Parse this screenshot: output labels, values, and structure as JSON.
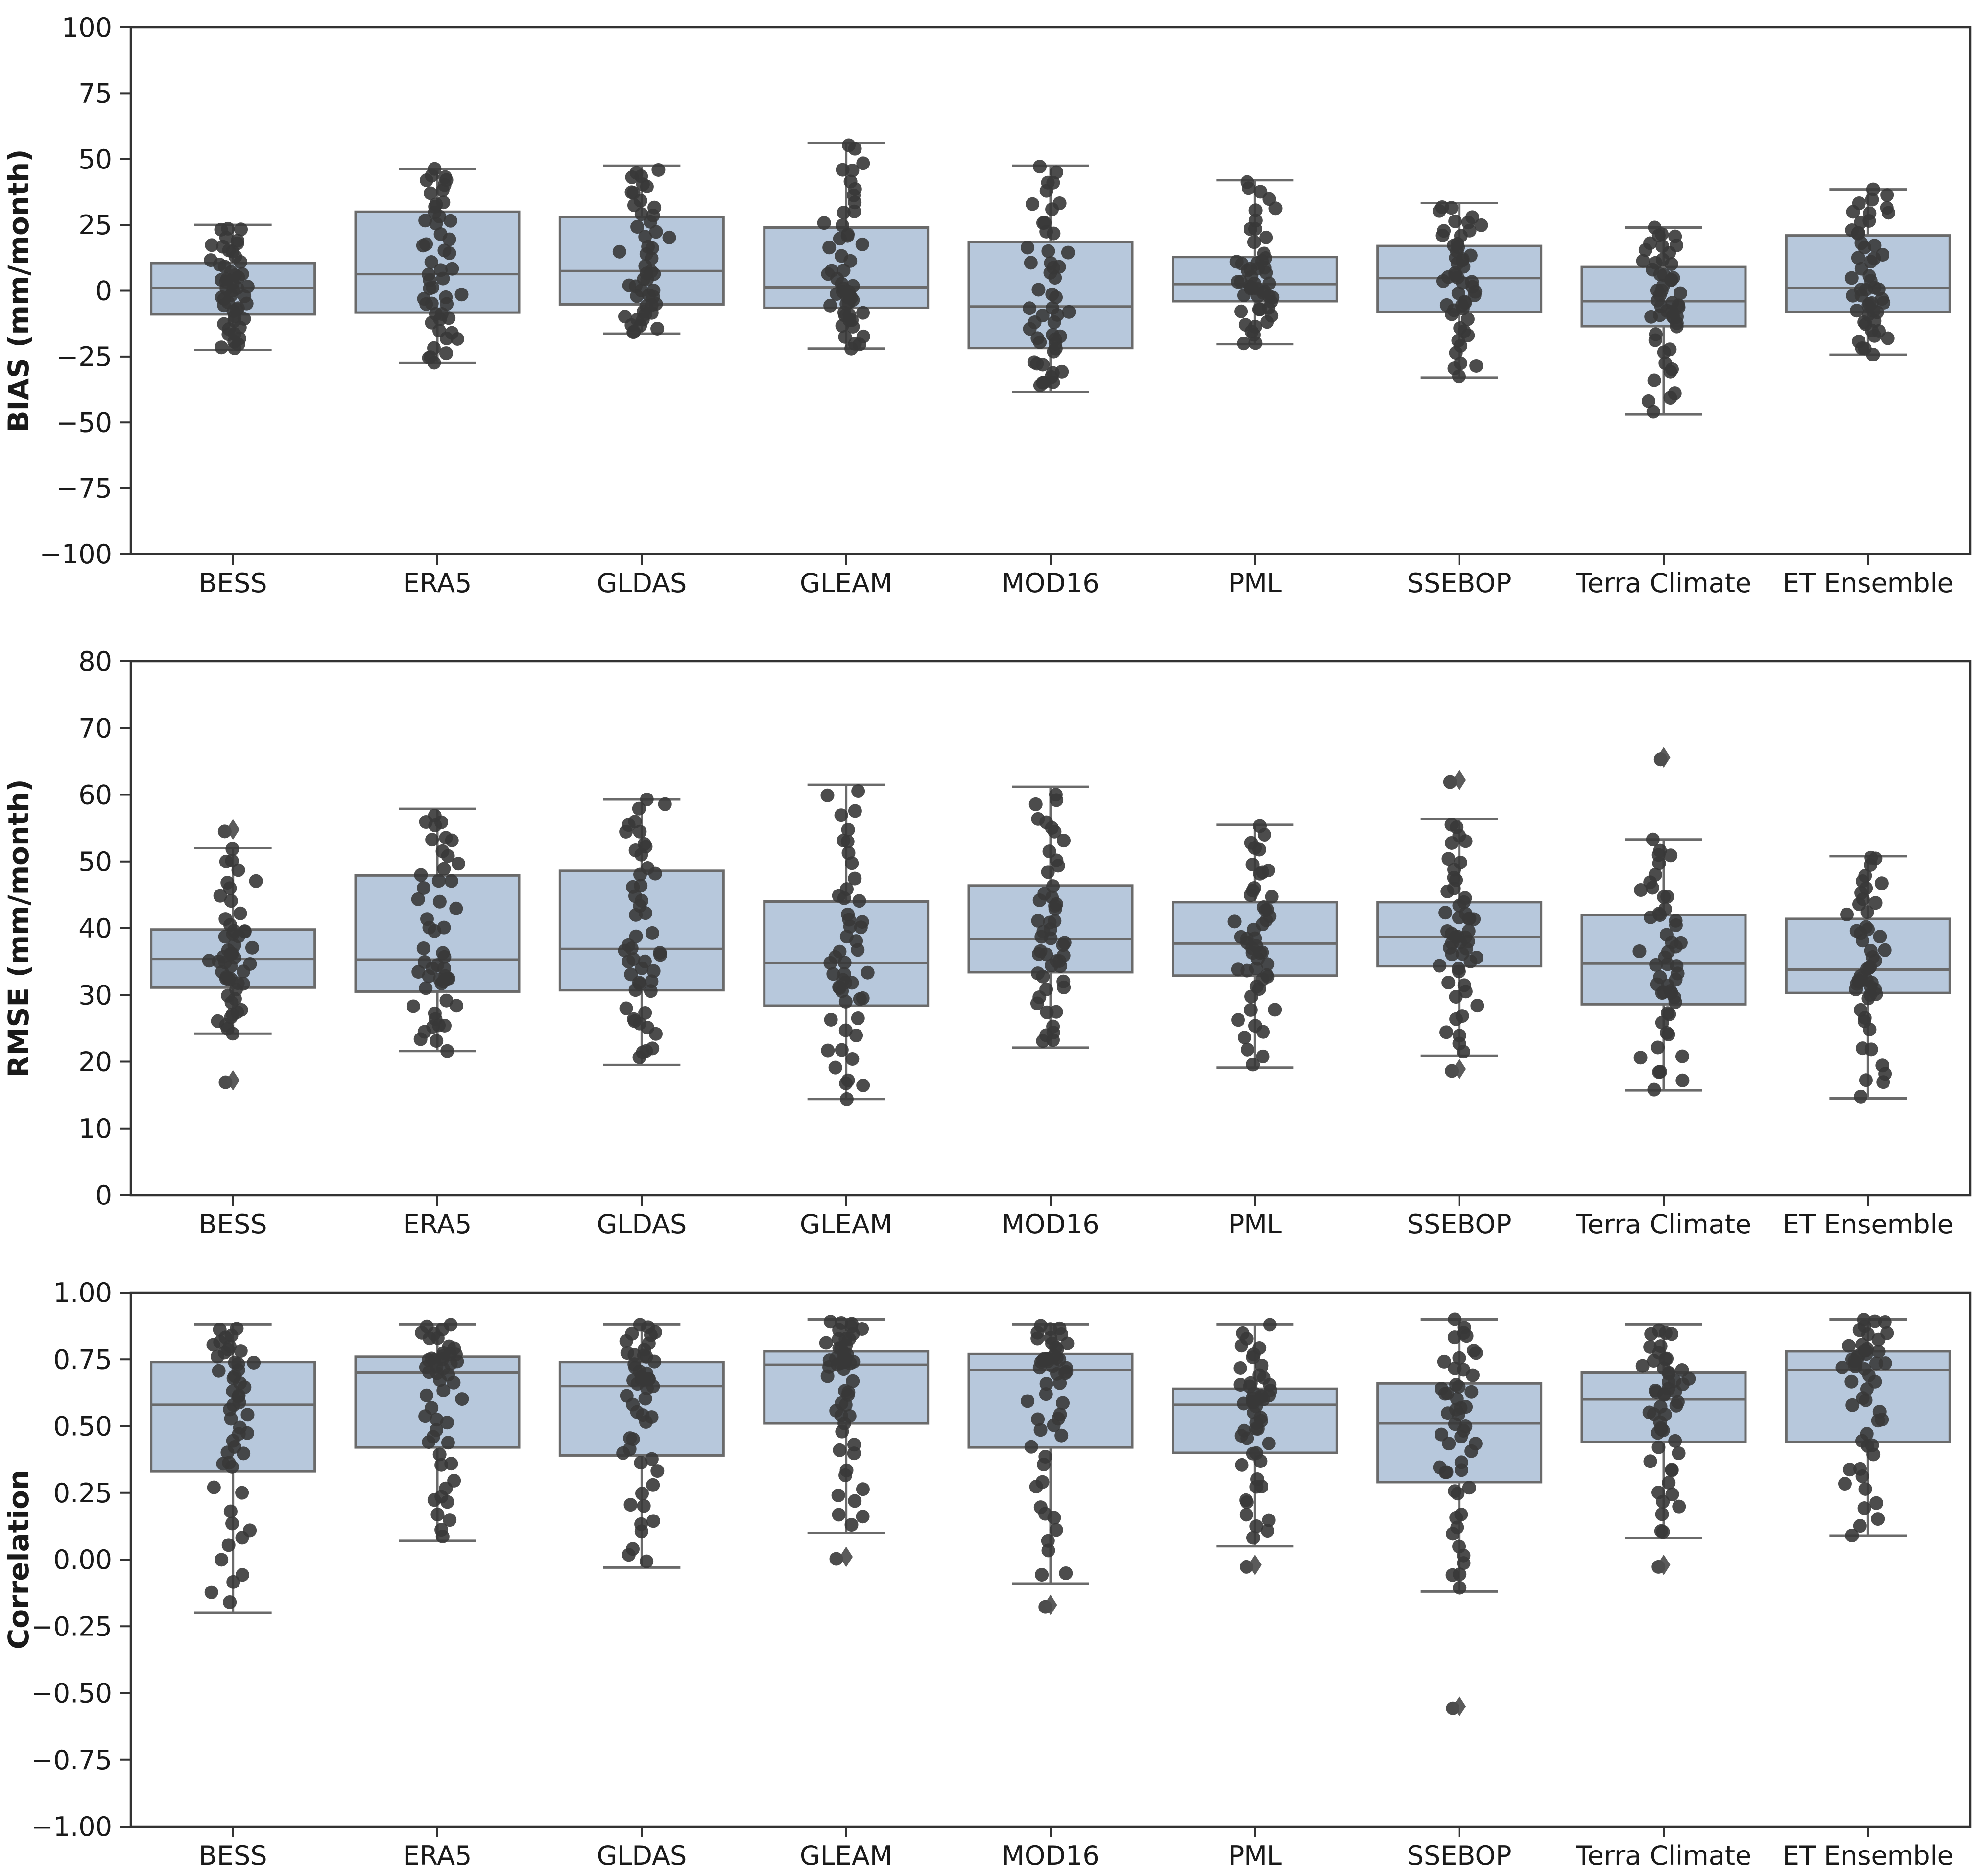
{
  "figure": {
    "background": "#ffffff",
    "box_fill": "#b7c8dc",
    "box_stroke": "#6a6a6a",
    "whisker_color": "#6a6a6a",
    "point_color": "#383838",
    "flier_color": "#4d4d4d",
    "axis_color": "#333333",
    "text_color": "#1a1a1a",
    "points_per_group": 50
  },
  "chart_data": [
    {
      "type": "box",
      "id": "bias",
      "ylabel": "BIAS (mm/month)",
      "xlabel": "",
      "ylim": [
        -100,
        100
      ],
      "grid": false,
      "yticks": [
        {
          "v": 100,
          "label": "100"
        },
        {
          "v": 75,
          "label": "75"
        },
        {
          "v": 50,
          "label": "50"
        },
        {
          "v": 25,
          "label": "25"
        },
        {
          "v": 0,
          "label": "0"
        },
        {
          "v": -25,
          "label": "−25"
        },
        {
          "v": -50,
          "label": "−50"
        },
        {
          "v": -75,
          "label": "−75"
        },
        {
          "v": -100,
          "label": "−100"
        }
      ],
      "stats": [
        {
          "category": "BESS",
          "whislo": -22.5,
          "q1": -9,
          "med": 1,
          "q3": 10.5,
          "whishi": 25,
          "fliers": []
        },
        {
          "category": "ERA5",
          "whislo": -27.5,
          "q1": -8.3,
          "med": 6.3,
          "q3": 30,
          "whishi": 46.3,
          "fliers": []
        },
        {
          "category": "GLDAS",
          "whislo": -16.3,
          "q1": -5.2,
          "med": 7.5,
          "q3": 28,
          "whishi": 47.5,
          "fliers": []
        },
        {
          "category": "GLEAM",
          "whislo": -22,
          "q1": -6.5,
          "med": 1.3,
          "q3": 24,
          "whishi": 56,
          "fliers": []
        },
        {
          "category": "MOD16",
          "whislo": -38.5,
          "q1": -21.8,
          "med": -6,
          "q3": 18.5,
          "whishi": 47.5,
          "fliers": []
        },
        {
          "category": "PML",
          "whislo": -20.3,
          "q1": -4,
          "med": 2.5,
          "q3": 12.8,
          "whishi": 42,
          "fliers": []
        },
        {
          "category": "SSEBOP",
          "whislo": -33,
          "q1": -8,
          "med": 4.8,
          "q3": 17,
          "whishi": 33.3,
          "fliers": []
        },
        {
          "category": "Terra Climate",
          "whislo": -47,
          "q1": -13.5,
          "med": -4,
          "q3": 9,
          "whishi": 24,
          "fliers": []
        },
        {
          "category": "ET Ensemble",
          "whislo": -24.3,
          "q1": -8,
          "med": 1,
          "q3": 21,
          "whishi": 38.5,
          "fliers": []
        }
      ]
    },
    {
      "type": "box",
      "id": "rmse",
      "ylabel": "RMSE (mm/month)",
      "xlabel": "",
      "ylim": [
        0,
        80
      ],
      "grid": false,
      "yticks": [
        {
          "v": 80,
          "label": "80"
        },
        {
          "v": 70,
          "label": "70"
        },
        {
          "v": 60,
          "label": "60"
        },
        {
          "v": 50,
          "label": "50"
        },
        {
          "v": 40,
          "label": "40"
        },
        {
          "v": 30,
          "label": "30"
        },
        {
          "v": 20,
          "label": "20"
        },
        {
          "v": 10,
          "label": "10"
        },
        {
          "v": 0,
          "label": "0"
        }
      ],
      "stats": [
        {
          "category": "BESS",
          "whislo": 24.2,
          "q1": 31.1,
          "med": 35.4,
          "q3": 39.8,
          "whishi": 52,
          "fliers": [
            54.8,
            17.2
          ]
        },
        {
          "category": "ERA5",
          "whislo": 21.6,
          "q1": 30.5,
          "med": 35.3,
          "q3": 47.9,
          "whishi": 57.9,
          "fliers": []
        },
        {
          "category": "GLDAS",
          "whislo": 19.5,
          "q1": 30.7,
          "med": 36.9,
          "q3": 48.6,
          "whishi": 59.3,
          "fliers": []
        },
        {
          "category": "GLEAM",
          "whislo": 14.4,
          "q1": 28.4,
          "med": 34.8,
          "q3": 44,
          "whishi": 61.5,
          "fliers": []
        },
        {
          "category": "MOD16",
          "whislo": 22.1,
          "q1": 33.4,
          "med": 38.4,
          "q3": 46.4,
          "whishi": 61.2,
          "fliers": []
        },
        {
          "category": "PML",
          "whislo": 19.1,
          "q1": 32.9,
          "med": 37.7,
          "q3": 43.9,
          "whishi": 55.5,
          "fliers": []
        },
        {
          "category": "SSEBOP",
          "whislo": 20.9,
          "q1": 34.3,
          "med": 38.7,
          "q3": 43.9,
          "whishi": 56.4,
          "fliers": [
            62.2,
            18.9
          ]
        },
        {
          "category": "Terra Climate",
          "whislo": 15.7,
          "q1": 28.6,
          "med": 34.7,
          "q3": 42,
          "whishi": 53.3,
          "fliers": [
            65.6
          ]
        },
        {
          "category": "ET Ensemble",
          "whislo": 14.5,
          "q1": 30.3,
          "med": 33.8,
          "q3": 41.4,
          "whishi": 50.8,
          "fliers": []
        }
      ]
    },
    {
      "type": "box",
      "id": "correlation",
      "ylabel": "Correlation",
      "xlabel": "",
      "ylim": [
        -1,
        1
      ],
      "grid": false,
      "yticks": [
        {
          "v": 1.0,
          "label": "1.00"
        },
        {
          "v": 0.75,
          "label": "0.75"
        },
        {
          "v": 0.5,
          "label": "0.50"
        },
        {
          "v": 0.25,
          "label": "0.25"
        },
        {
          "v": 0.0,
          "label": "0.00"
        },
        {
          "v": -0.25,
          "label": "−0.25"
        },
        {
          "v": -0.5,
          "label": "−0.50"
        },
        {
          "v": -0.75,
          "label": "−0.75"
        },
        {
          "v": -1.0,
          "label": "−1.00"
        }
      ],
      "stats": [
        {
          "category": "BESS",
          "whislo": -0.2,
          "q1": 0.33,
          "med": 0.58,
          "q3": 0.74,
          "whishi": 0.88,
          "fliers": []
        },
        {
          "category": "ERA5",
          "whislo": 0.07,
          "q1": 0.42,
          "med": 0.7,
          "q3": 0.76,
          "whishi": 0.88,
          "fliers": []
        },
        {
          "category": "GLDAS",
          "whislo": -0.03,
          "q1": 0.39,
          "med": 0.65,
          "q3": 0.74,
          "whishi": 0.88,
          "fliers": []
        },
        {
          "category": "GLEAM",
          "whislo": 0.1,
          "q1": 0.51,
          "med": 0.73,
          "q3": 0.78,
          "whishi": 0.9,
          "fliers": [
            0.01
          ]
        },
        {
          "category": "MOD16",
          "whislo": -0.09,
          "q1": 0.42,
          "med": 0.71,
          "q3": 0.77,
          "whishi": 0.88,
          "fliers": [
            -0.17
          ]
        },
        {
          "category": "PML",
          "whislo": 0.05,
          "q1": 0.4,
          "med": 0.58,
          "q3": 0.64,
          "whishi": 0.88,
          "fliers": [
            -0.02
          ]
        },
        {
          "category": "SSEBOP",
          "whislo": -0.12,
          "q1": 0.29,
          "med": 0.51,
          "q3": 0.66,
          "whishi": 0.9,
          "fliers": [
            -0.55
          ]
        },
        {
          "category": "Terra Climate",
          "whislo": 0.08,
          "q1": 0.44,
          "med": 0.6,
          "q3": 0.7,
          "whishi": 0.88,
          "fliers": [
            -0.02
          ]
        },
        {
          "category": "ET Ensemble",
          "whislo": 0.09,
          "q1": 0.44,
          "med": 0.71,
          "q3": 0.78,
          "whishi": 0.9,
          "fliers": []
        }
      ]
    }
  ]
}
